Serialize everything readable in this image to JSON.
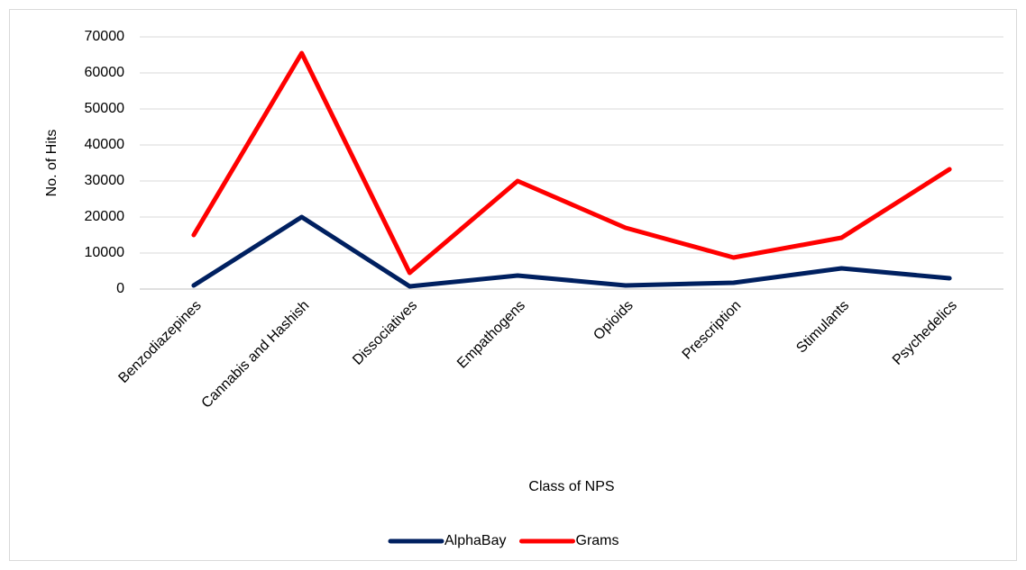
{
  "chart_data": {
    "type": "line",
    "x_label": "Class of NPS",
    "y_label": "No. of Hits",
    "categories": [
      "Benzodiazepines",
      "Cannabis and Hashish",
      "Dissociatives",
      "Empathogens",
      "Opioids",
      "Prescription",
      "Stimulants",
      "Psychedelics"
    ],
    "series": [
      {
        "name": "AlphaBay",
        "color": "#002060",
        "values": [
          1000,
          20000,
          750,
          3750,
          1000,
          1750,
          5750,
          3000
        ]
      },
      {
        "name": "Grams",
        "color": "#ff0000",
        "values": [
          15000,
          65500,
          4500,
          30000,
          17000,
          8750,
          14250,
          33250
        ]
      }
    ],
    "ylim": [
      0,
      70000
    ],
    "yticks": [
      0,
      10000,
      20000,
      30000,
      40000,
      50000,
      60000,
      70000
    ],
    "grid": true,
    "legend": "bottom"
  }
}
